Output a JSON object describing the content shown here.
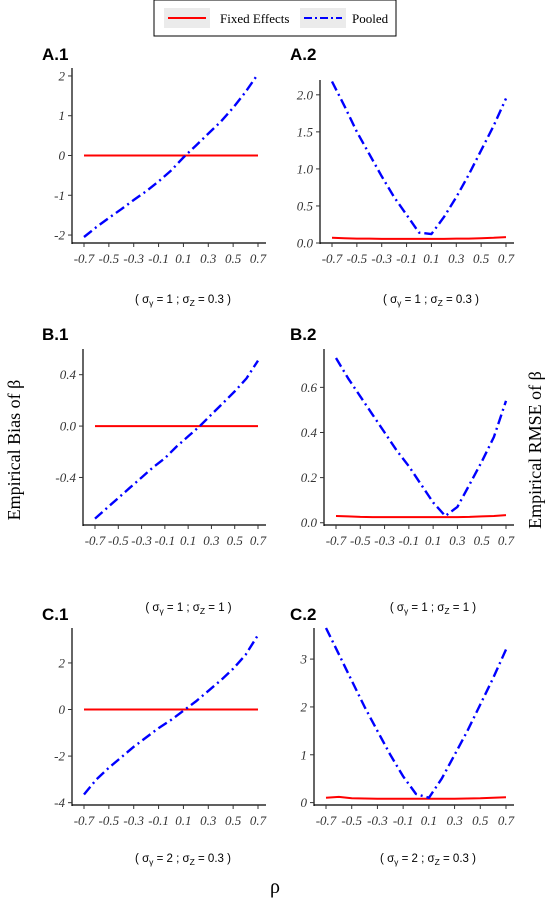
{
  "legend": {
    "entries": [
      {
        "name": "Fixed Effects",
        "color": "#ff0000",
        "style": "solid"
      },
      {
        "name": "Pooled",
        "color": "#0000ff",
        "style": "dashdot"
      }
    ]
  },
  "ylabel_left": "Empirical Bias of β",
  "ylabel_right": "Empirical RMSE of β",
  "xlabel": "ρ",
  "chart_data": [
    {
      "id": "A.1",
      "type": "line",
      "title": "A.1",
      "caption": "( σγ = 1 ; σZ = 0.3 )",
      "caption_parts": {
        "pre": "( σ",
        "sub1": "γ",
        "mid": " = 1 ; σ",
        "sub2": "Z",
        "post": " = 0.3 )"
      },
      "x": [
        -0.7,
        -0.6,
        -0.5,
        -0.4,
        -0.3,
        -0.2,
        -0.1,
        0,
        0.1,
        0.2,
        0.3,
        0.4,
        0.5,
        0.6,
        0.7
      ],
      "xticks": [
        -0.7,
        -0.5,
        -0.3,
        -0.1,
        0.1,
        0.3,
        0.5,
        0.7
      ],
      "xticklabels": [
        "-0.7",
        "-0.5",
        "-0.3",
        "-0.1",
        "0.1",
        "0.3",
        "0.5",
        "0.7"
      ],
      "ylim": [
        -2.2,
        2.2
      ],
      "yticks": [
        -2,
        -1,
        0,
        1,
        2
      ],
      "yticklabels": [
        "-2",
        "-1",
        "0",
        "1",
        "2"
      ],
      "series": [
        {
          "name": "Fixed Effects",
          "values": [
            0,
            0,
            0,
            0,
            0,
            0,
            0,
            0,
            0,
            0,
            0,
            0,
            0,
            0,
            0
          ]
        },
        {
          "name": "Pooled",
          "values": [
            -2.05,
            -1.8,
            -1.57,
            -1.35,
            -1.12,
            -0.9,
            -0.65,
            -0.38,
            -0.05,
            0.25,
            0.55,
            0.85,
            1.2,
            1.6,
            2.05
          ]
        }
      ]
    },
    {
      "id": "A.2",
      "type": "line",
      "title": "A.2",
      "caption": "( σγ = 1 ; σZ = 0.3 )",
      "caption_parts": {
        "pre": "( σ",
        "sub1": "γ",
        "mid": " = 1 ; σ",
        "sub2": "Z",
        "post": " = 0.3 )"
      },
      "x": [
        -0.7,
        -0.6,
        -0.5,
        -0.4,
        -0.3,
        -0.2,
        -0.1,
        0,
        0.1,
        0.2,
        0.3,
        0.4,
        0.5,
        0.6,
        0.7
      ],
      "xticks": [
        -0.7,
        -0.5,
        -0.3,
        -0.1,
        0.1,
        0.3,
        0.5,
        0.7
      ],
      "xticklabels": [
        "-0.7",
        "-0.5",
        "-0.3",
        "-0.1",
        "0.1",
        "0.3",
        "0.5",
        "0.7"
      ],
      "ylim": [
        0,
        2.2
      ],
      "yticks": [
        0,
        0.5,
        1,
        1.5,
        2
      ],
      "yticklabels": [
        "0.0",
        "0.5",
        "1.0",
        "1.5",
        "2.0"
      ],
      "series": [
        {
          "name": "Fixed Effects",
          "values": [
            0.07,
            0.065,
            0.06,
            0.06,
            0.055,
            0.055,
            0.055,
            0.055,
            0.055,
            0.055,
            0.06,
            0.06,
            0.065,
            0.07,
            0.08
          ]
        },
        {
          "name": "Pooled",
          "values": [
            2.18,
            1.85,
            1.5,
            1.2,
            0.9,
            0.62,
            0.38,
            0.14,
            0.12,
            0.35,
            0.62,
            0.92,
            1.25,
            1.58,
            1.95
          ]
        }
      ]
    },
    {
      "id": "B.1",
      "type": "line",
      "title": "B.1",
      "caption": "( σγ = 1 ; σZ = 1 )",
      "caption_parts": {
        "pre": "( σ",
        "sub1": "γ",
        "mid": " = 1 ; σ",
        "sub2": "Z",
        "post": " = 1 )"
      },
      "x": [
        -0.7,
        -0.6,
        -0.5,
        -0.4,
        -0.3,
        -0.2,
        -0.1,
        0,
        0.1,
        0.2,
        0.3,
        0.4,
        0.5,
        0.6,
        0.7
      ],
      "xticks": [
        -0.7,
        -0.5,
        -0.3,
        -0.1,
        0.1,
        0.3,
        0.5,
        0.7
      ],
      "xticklabels": [
        "-0.7",
        "-0.5",
        "-0.3",
        "-0.1",
        "0.1",
        "0.3",
        "0.5",
        "0.7"
      ],
      "ylim": [
        -0.77,
        0.6
      ],
      "yticks": [
        -0.4,
        0,
        0.4
      ],
      "yticklabels": [
        "-0.4",
        "0.0",
        "0.4"
      ],
      "series": [
        {
          "name": "Fixed Effects",
          "values": [
            0,
            0,
            0,
            0,
            0,
            0,
            0,
            0,
            0,
            0,
            0,
            0,
            0,
            0,
            0
          ]
        },
        {
          "name": "Pooled",
          "values": [
            -0.72,
            -0.64,
            -0.56,
            -0.48,
            -0.4,
            -0.32,
            -0.25,
            -0.16,
            -0.08,
            0,
            0.09,
            0.18,
            0.27,
            0.37,
            0.51
          ]
        }
      ]
    },
    {
      "id": "B.2",
      "type": "line",
      "title": "B.2",
      "caption": "( σγ = 1 ; σZ = 1 )",
      "caption_parts": {
        "pre": "( σ",
        "sub1": "γ",
        "mid": " = 1 ; σ",
        "sub2": "Z",
        "post": " = 1 )"
      },
      "x": [
        -0.7,
        -0.6,
        -0.5,
        -0.4,
        -0.3,
        -0.2,
        -0.1,
        0,
        0.1,
        0.2,
        0.3,
        0.4,
        0.5,
        0.6,
        0.7
      ],
      "xticks": [
        -0.7,
        -0.5,
        -0.3,
        -0.1,
        0.1,
        0.3,
        0.5,
        0.7
      ],
      "xticklabels": [
        "-0.7",
        "-0.5",
        "-0.3",
        "-0.1",
        "0.1",
        "0.3",
        "0.5",
        "0.7"
      ],
      "ylim": [
        -0.01,
        0.77
      ],
      "yticks": [
        0,
        0.2,
        0.4,
        0.6
      ],
      "yticklabels": [
        "0.0",
        "0.2",
        "0.4",
        "0.6"
      ],
      "series": [
        {
          "name": "Fixed Effects",
          "values": [
            0.03,
            0.028,
            0.026,
            0.025,
            0.025,
            0.025,
            0.025,
            0.025,
            0.025,
            0.025,
            0.025,
            0.026,
            0.028,
            0.03,
            0.034
          ]
        },
        {
          "name": "Pooled",
          "values": [
            0.73,
            0.64,
            0.56,
            0.48,
            0.4,
            0.32,
            0.25,
            0.17,
            0.09,
            0.03,
            0.07,
            0.17,
            0.27,
            0.38,
            0.54
          ]
        }
      ]
    },
    {
      "id": "C.1",
      "type": "line",
      "title": "C.1",
      "caption": "( σγ = 2 ; σZ = 0.3 )",
      "caption_parts": {
        "pre": "( σ",
        "sub1": "γ",
        "mid": " = 2 ; σ",
        "sub2": "Z",
        "post": " = 0.3 )"
      },
      "x": [
        -0.7,
        -0.6,
        -0.5,
        -0.4,
        -0.3,
        -0.2,
        -0.1,
        0,
        0.1,
        0.2,
        0.3,
        0.4,
        0.5,
        0.6,
        0.7
      ],
      "xticks": [
        -0.7,
        -0.5,
        -0.3,
        -0.1,
        0.1,
        0.3,
        0.5,
        0.7
      ],
      "xticklabels": [
        "-0.7",
        "-0.5",
        "-0.3",
        "-0.1",
        "0.1",
        "0.3",
        "0.5",
        "0.7"
      ],
      "ylim": [
        -4.1,
        3.5
      ],
      "yticks": [
        -4,
        -2,
        0,
        2
      ],
      "yticklabels": [
        "-4",
        "-2",
        "0",
        "2"
      ],
      "series": [
        {
          "name": "Fixed Effects",
          "values": [
            0,
            0,
            0,
            0,
            0,
            0,
            0,
            0,
            0,
            0,
            0,
            0,
            0,
            0,
            0
          ]
        },
        {
          "name": "Pooled",
          "values": [
            -3.65,
            -3.0,
            -2.5,
            -2.05,
            -1.6,
            -1.2,
            -0.8,
            -0.45,
            -0.05,
            0.35,
            0.8,
            1.25,
            1.75,
            2.35,
            3.2
          ]
        }
      ]
    },
    {
      "id": "C.2",
      "type": "line",
      "title": "C.2",
      "caption": "( σγ = 2 ; σZ = 0.3 )",
      "caption_parts": {
        "pre": "( σ",
        "sub1": "γ",
        "mid": " = 2 ; σ",
        "sub2": "Z",
        "post": " = 0.3 )"
      },
      "x": [
        -0.7,
        -0.6,
        -0.5,
        -0.4,
        -0.3,
        -0.2,
        -0.1,
        0,
        0.1,
        0.2,
        0.3,
        0.4,
        0.5,
        0.6,
        0.7
      ],
      "xticks": [
        -0.7,
        -0.5,
        -0.3,
        -0.1,
        0.1,
        0.3,
        0.5,
        0.7
      ],
      "xticklabels": [
        "-0.7",
        "-0.5",
        "-0.3",
        "-0.1",
        "0.1",
        "0.3",
        "0.5",
        "0.7"
      ],
      "ylim": [
        -0.05,
        3.65
      ],
      "yticks": [
        0,
        1,
        2,
        3
      ],
      "yticklabels": [
        "0",
        "1",
        "2",
        "3"
      ],
      "series": [
        {
          "name": "Fixed Effects",
          "values": [
            0.1,
            0.12,
            0.09,
            0.085,
            0.08,
            0.08,
            0.08,
            0.08,
            0.08,
            0.08,
            0.08,
            0.085,
            0.09,
            0.1,
            0.11
          ]
        },
        {
          "name": "Pooled",
          "values": [
            3.65,
            3.1,
            2.55,
            2.0,
            1.5,
            1.0,
            0.55,
            0.18,
            0.1,
            0.5,
            1.0,
            1.5,
            2.05,
            2.6,
            3.2
          ]
        }
      ]
    }
  ]
}
